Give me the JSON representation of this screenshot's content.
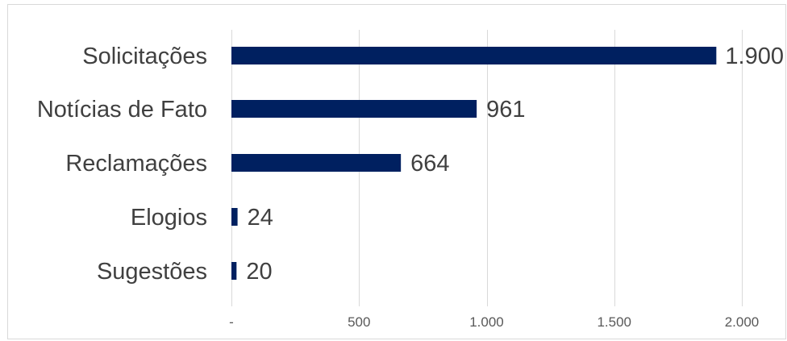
{
  "chart_data": {
    "type": "bar",
    "orientation": "horizontal",
    "categories": [
      "Solicitações",
      "Notícias de Fato",
      "Reclamações",
      "Elogios",
      "Sugestões"
    ],
    "values": [
      1900,
      961,
      664,
      24,
      20
    ],
    "value_labels": [
      "1.900",
      "961",
      "664",
      "24",
      "20"
    ],
    "xlim": [
      0,
      2000
    ],
    "xticks": [
      0,
      500,
      1000,
      1500,
      2000
    ],
    "xtick_labels": [
      "-",
      "500",
      "1.000",
      "1.500",
      "2.000"
    ],
    "grid": true,
    "legend": "none",
    "bar_color": "#002060",
    "title": "",
    "xlabel": "",
    "ylabel": ""
  }
}
